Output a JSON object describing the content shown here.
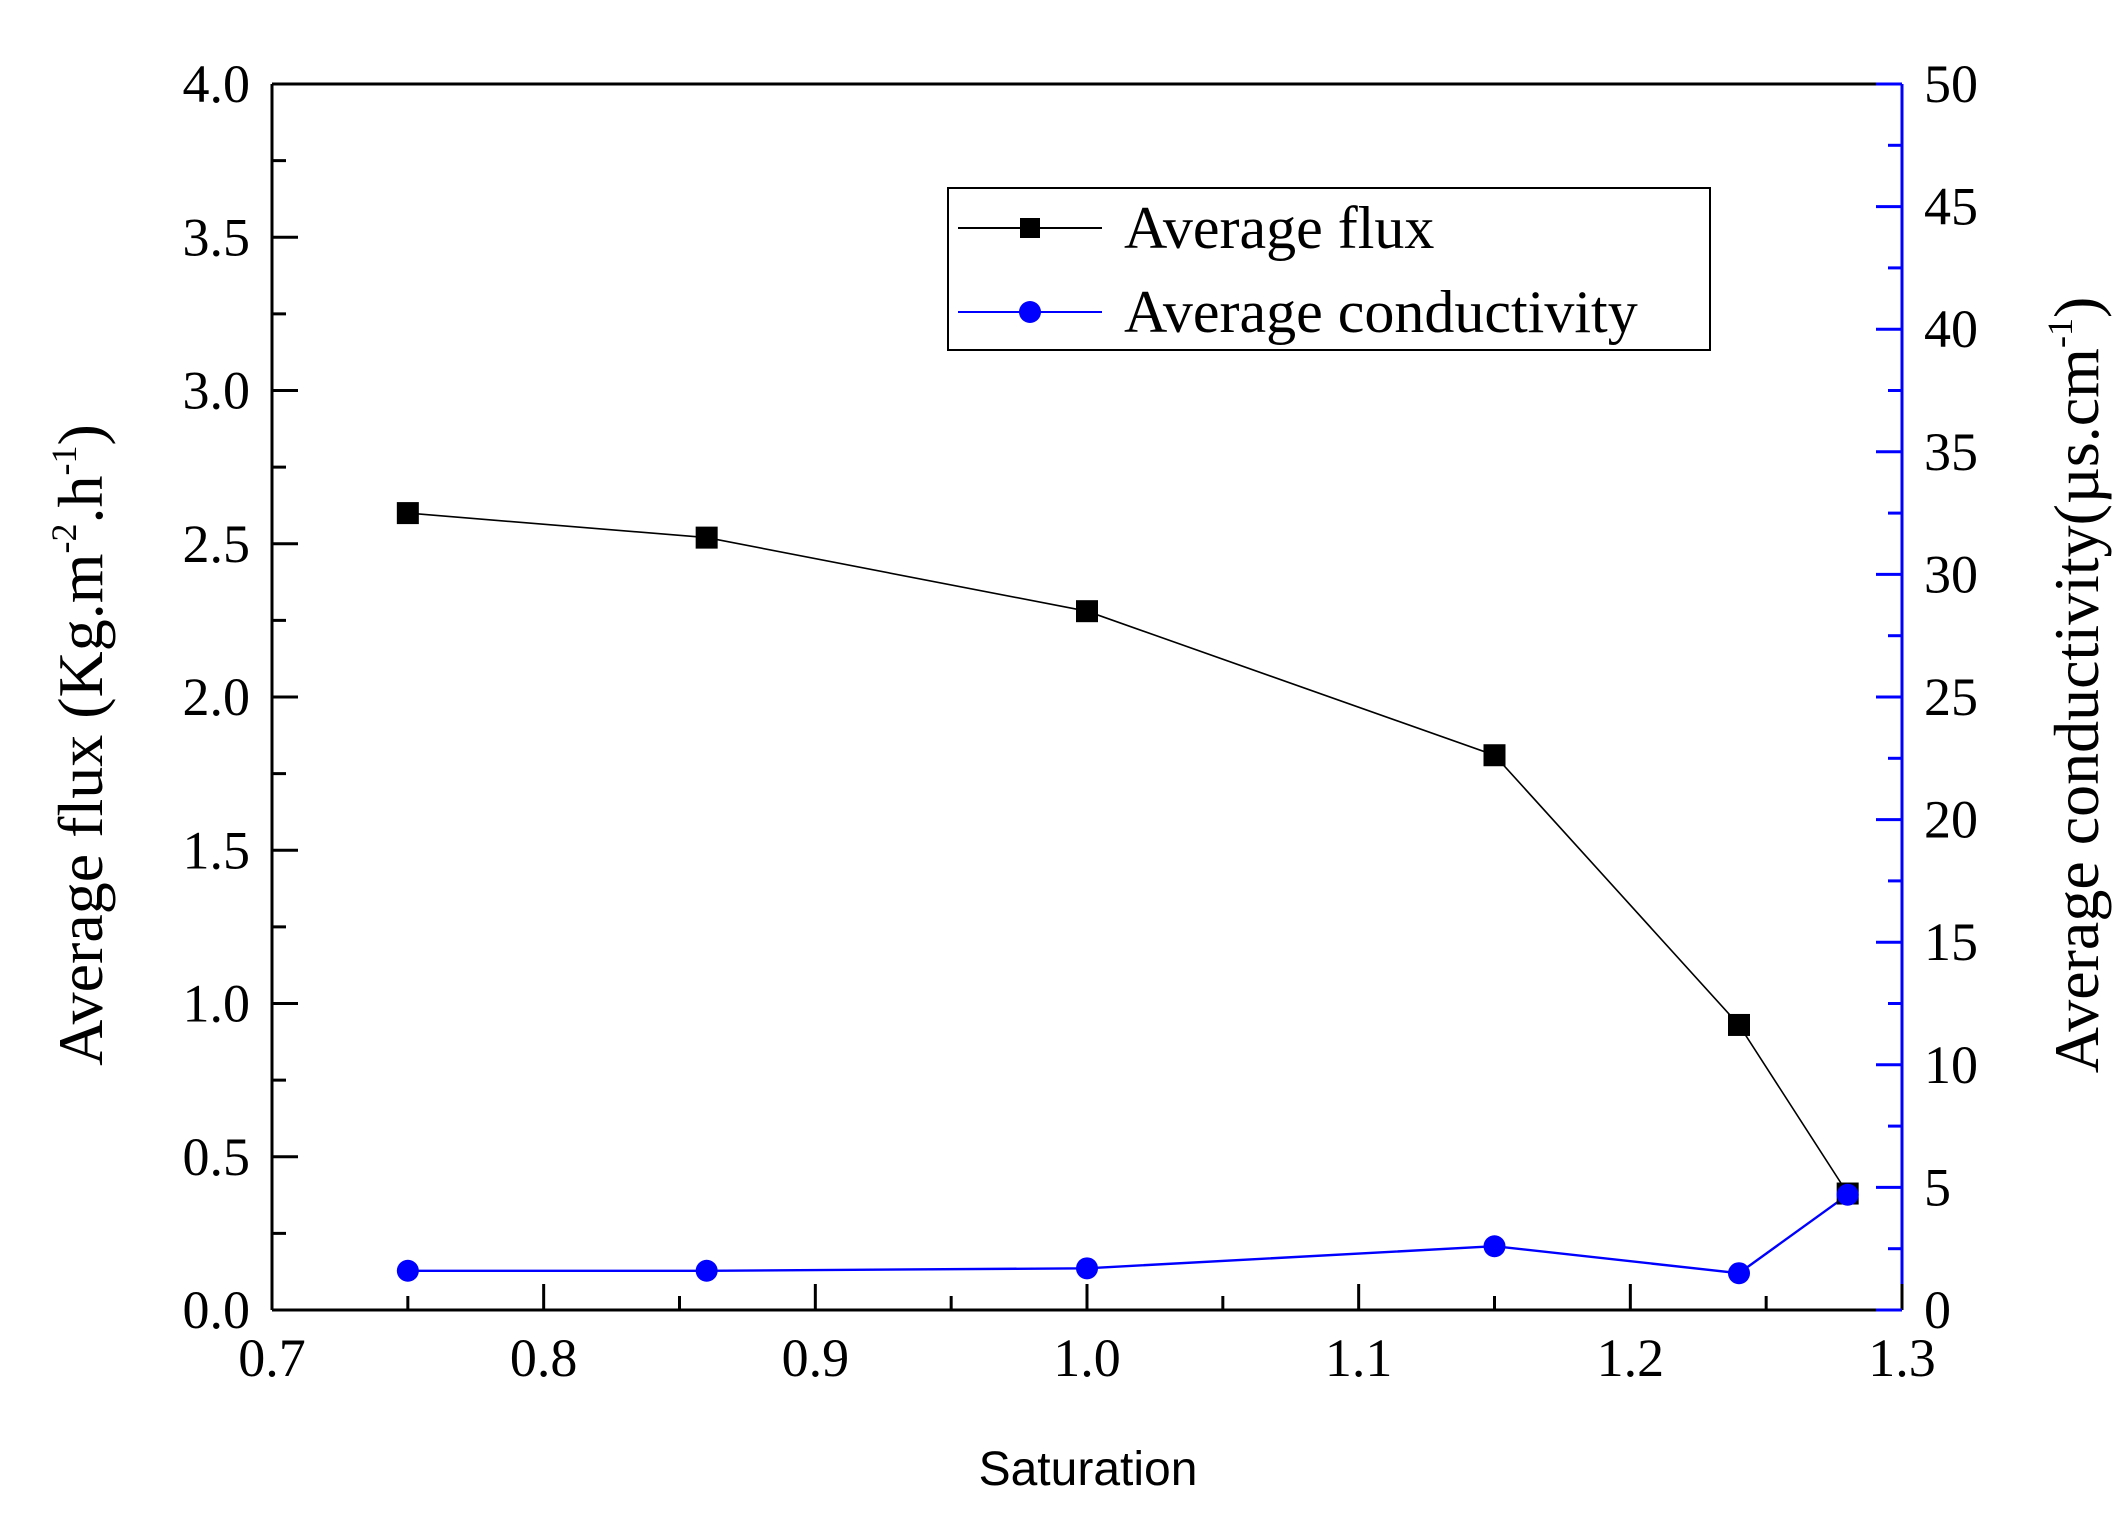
{
  "chart_data": {
    "type": "line",
    "title": "",
    "xlabel": "Saturation",
    "ylabel_left": {
      "parts": [
        "Average flux (Kg.m",
        "-2",
        ".h",
        "-1",
        ")"
      ]
    },
    "ylabel_right": {
      "parts": [
        "Average conductivity(µs.cm",
        "-1",
        ")"
      ]
    },
    "xlim": [
      0.7,
      1.3
    ],
    "ylim_left": [
      0.0,
      4.0
    ],
    "ylim_right": [
      0,
      50
    ],
    "x_ticks": [
      "0.7",
      "0.8",
      "0.9",
      "1.0",
      "1.1",
      "1.2",
      "1.3"
    ],
    "y_left_ticks": [
      "0.0",
      "0.5",
      "1.0",
      "1.5",
      "2.0",
      "2.5",
      "3.0",
      "3.5",
      "4.0"
    ],
    "y_right_ticks": [
      "0",
      "5",
      "10",
      "15",
      "20",
      "25",
      "30",
      "35",
      "40",
      "45",
      "50"
    ],
    "grid": false,
    "legend_position": "top-right",
    "series": [
      {
        "name": "Average flux",
        "axis": "left",
        "marker": "square",
        "color": "#000000",
        "x": [
          0.75,
          0.86,
          1.0,
          1.15,
          1.24,
          1.28
        ],
        "values": [
          2.6,
          2.52,
          2.28,
          1.81,
          0.93,
          0.38
        ]
      },
      {
        "name": "Average conductivity",
        "axis": "right",
        "marker": "circle",
        "color": "#0000ff",
        "x": [
          0.75,
          0.86,
          1.0,
          1.15,
          1.24,
          1.28
        ],
        "values": [
          1.6,
          1.6,
          1.7,
          2.6,
          1.5,
          4.7
        ]
      }
    ]
  },
  "colors": {
    "left_axis": "#000000",
    "right_axis": "#0000ff",
    "flux": "#000000",
    "conductivity": "#0000ff"
  }
}
